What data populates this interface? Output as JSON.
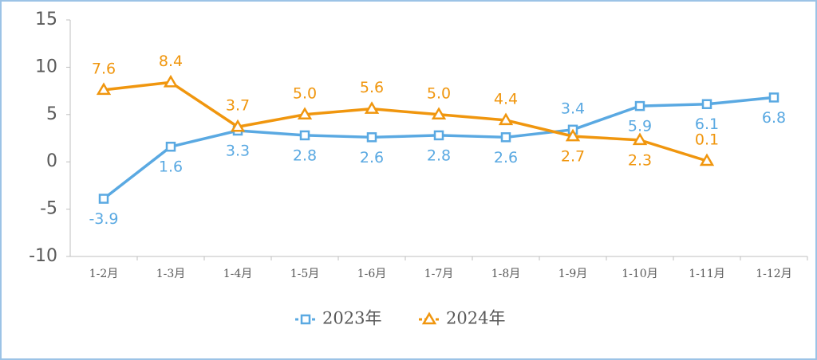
{
  "chart_data": {
    "type": "line",
    "categories": [
      "1-2月",
      "1-3月",
      "1-4月",
      "1-5月",
      "1-6月",
      "1-7月",
      "1-8月",
      "1-9月",
      "1-10月",
      "1-11月",
      "1-12月"
    ],
    "series": [
      {
        "name": "2023年",
        "color": "#5aa9e2",
        "marker": "square",
        "values": [
          -3.9,
          1.6,
          3.3,
          2.8,
          2.6,
          2.8,
          2.6,
          3.4,
          5.9,
          6.1,
          6.8
        ],
        "value_labels": [
          "-3.9",
          "1.6",
          "3.3",
          "2.8",
          "2.6",
          "2.8",
          "2.6",
          "3.4",
          "5.9",
          "6.1",
          "6.8"
        ]
      },
      {
        "name": "2024年",
        "color": "#f0960e",
        "marker": "triangle",
        "values": [
          7.6,
          8.4,
          3.7,
          5.0,
          5.6,
          5.0,
          4.4,
          2.7,
          2.3,
          0.1,
          null
        ],
        "value_labels": [
          "7.6",
          "8.4",
          "3.7",
          "5.0",
          "5.6",
          "5.0",
          "4.4",
          "2.7",
          "2.3",
          "0.1",
          null
        ]
      }
    ],
    "ylim": [
      -10,
      15
    ],
    "yticks": [
      -10,
      -5,
      0,
      5,
      10,
      15
    ],
    "grid": false,
    "legend": "bottom"
  }
}
